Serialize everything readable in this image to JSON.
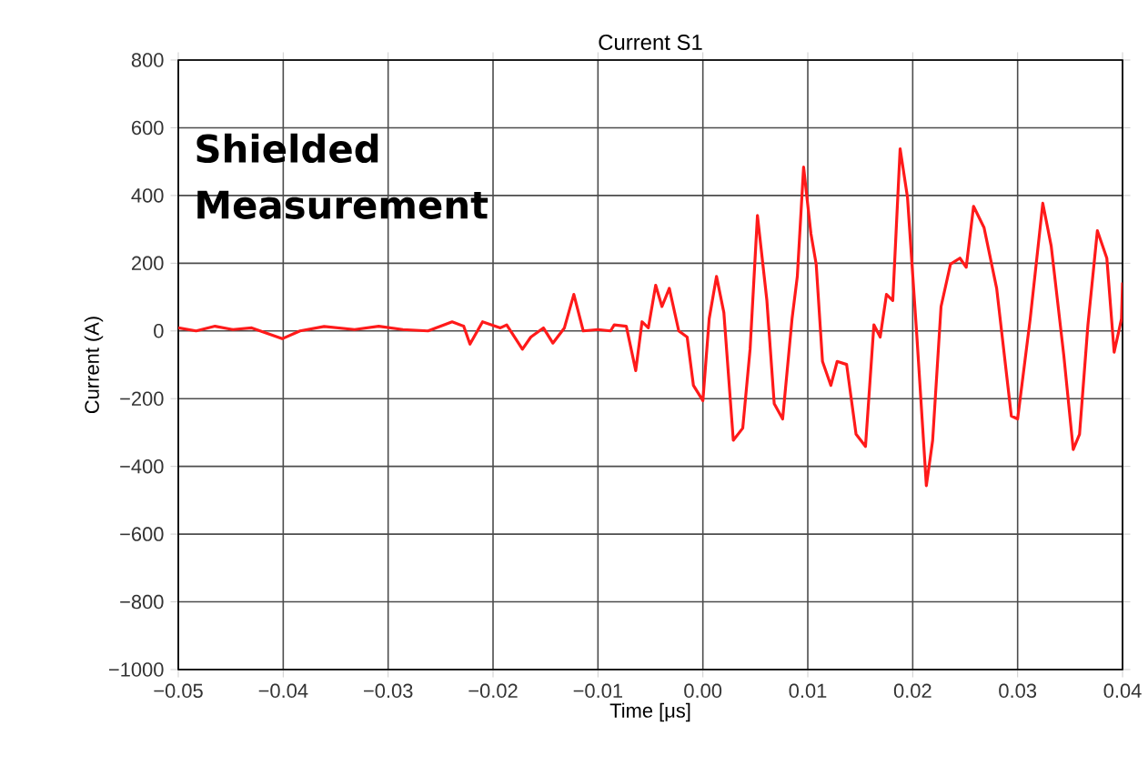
{
  "chart_data": {
    "type": "line",
    "title": "Current S1",
    "xlabel": "Time [μs]",
    "ylabel": "Current (A)",
    "annotations": [
      "Shielded Measurement"
    ],
    "xlim": [
      -0.05,
      0.04
    ],
    "ylim": [
      -1000,
      800
    ],
    "xticks": [
      {
        "value": -0.05,
        "label": "−0.05"
      },
      {
        "value": -0.04,
        "label": "−0.04"
      },
      {
        "value": -0.03,
        "label": "−0.03"
      },
      {
        "value": -0.02,
        "label": "−0.02"
      },
      {
        "value": -0.01,
        "label": "−0.01"
      },
      {
        "value": 0,
        "label": "0.00"
      },
      {
        "value": 0.01,
        "label": "0.01"
      },
      {
        "value": 0.02,
        "label": "0.02"
      },
      {
        "value": 0.03,
        "label": "0.03"
      },
      {
        "value": 0.04,
        "label": "0.04"
      }
    ],
    "yticks": [
      {
        "value": -1000,
        "label": "−1000"
      },
      {
        "value": -800,
        "label": "−800"
      },
      {
        "value": -600,
        "label": "−600"
      },
      {
        "value": -400,
        "label": "−400"
      },
      {
        "value": -200,
        "label": "−200"
      },
      0,
      200,
      400,
      600,
      800
    ],
    "grid": true,
    "marker": "none",
    "line_style": "solid",
    "series": [
      {
        "color": "#ff1a1a",
        "x": [
          -0.05,
          -0.0483,
          -0.0465,
          -0.0448,
          -0.043,
          -0.0401,
          -0.0384,
          -0.0361,
          -0.0332,
          -0.0309,
          -0.0286,
          -0.0262,
          -0.0239,
          -0.0228,
          -0.0222,
          -0.021,
          -0.0193,
          -0.0187,
          -0.0172,
          -0.0164,
          -0.0152,
          -0.0143,
          -0.0132,
          -0.0123,
          -0.0114,
          -0.01,
          -0.0088,
          -0.00845,
          -0.0073,
          -0.0064,
          -0.0058,
          -0.0052,
          -0.0045,
          -0.0039,
          -0.0032,
          -0.0023,
          -0.0015,
          -0.0009,
          0.0,
          0.0006,
          0.0013,
          0.002,
          0.0029,
          0.0038,
          0.0045,
          0.0052,
          0.0061,
          0.0068,
          0.0076,
          0.0085,
          0.009,
          0.0096,
          0.0103,
          0.0108,
          0.0114,
          0.0122,
          0.0128,
          0.0137,
          0.0146,
          0.0155,
          0.0163,
          0.0169,
          0.0175,
          0.0181,
          0.0188,
          0.0195,
          0.0204,
          0.0213,
          0.0219,
          0.0227,
          0.0236,
          0.0245,
          0.0251,
          0.0258,
          0.0268,
          0.028,
          0.0294,
          0.03,
          0.0312,
          0.0324,
          0.0332,
          0.0344,
          0.0353,
          0.0359,
          0.0367,
          0.0376,
          0.0385,
          0.0392,
          0.0399,
          0.04
        ],
        "values": [
          9,
          0,
          14,
          4,
          9,
          -23,
          0,
          13,
          4,
          14,
          4,
          0,
          27,
          14,
          -39,
          27,
          9,
          18,
          -54,
          -18,
          9,
          -36,
          9,
          108,
          0,
          4,
          0,
          18,
          14,
          -117,
          27,
          9,
          135,
          72,
          126,
          0,
          -18,
          -161,
          -206,
          36,
          161,
          54,
          -323,
          -287,
          -54,
          341,
          90,
          -215,
          -260,
          36,
          161,
          484,
          287,
          197,
          -90,
          -161,
          -90,
          -99,
          -305,
          -341,
          18,
          -18,
          108,
          90,
          538,
          395,
          -18,
          -457,
          -323,
          72,
          197,
          215,
          188,
          368,
          305,
          126,
          -251,
          -260,
          36,
          377,
          251,
          -72,
          -350,
          -305,
          18,
          296,
          215,
          -63,
          36,
          143
        ]
      }
    ]
  }
}
